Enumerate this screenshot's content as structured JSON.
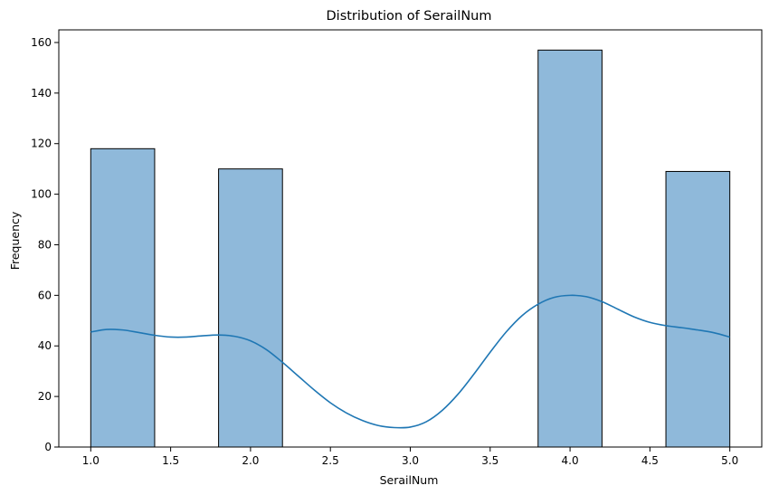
{
  "chart_data": {
    "type": "bar",
    "title": "Distribution of SerailNum",
    "xlabel": "SerailNum",
    "ylabel": "Frequency",
    "xlim": [
      0.8,
      5.2
    ],
    "ylim": [
      0,
      165
    ],
    "x_ticks": [
      "1.0",
      "1.5",
      "2.0",
      "2.5",
      "3.0",
      "3.5",
      "4.0",
      "4.5",
      "5.0"
    ],
    "y_ticks": [
      "0",
      "20",
      "40",
      "60",
      "80",
      "100",
      "120",
      "140",
      "160"
    ],
    "bins": [
      {
        "start": 1.0,
        "end": 1.4,
        "count": 118
      },
      {
        "start": 1.4,
        "end": 1.8,
        "count": 0
      },
      {
        "start": 1.8,
        "end": 2.2,
        "count": 110
      },
      {
        "start": 2.2,
        "end": 2.6,
        "count": 0
      },
      {
        "start": 2.6,
        "end": 3.0,
        "count": 0
      },
      {
        "start": 3.0,
        "end": 3.4,
        "count": 0
      },
      {
        "start": 3.4,
        "end": 3.8,
        "count": 0
      },
      {
        "start": 3.8,
        "end": 4.2,
        "count": 157
      },
      {
        "start": 4.2,
        "end": 4.6,
        "count": 0
      },
      {
        "start": 4.6,
        "end": 5.0,
        "count": 109
      }
    ],
    "kde": {
      "x": [
        1.0,
        1.1,
        1.2,
        1.3,
        1.4,
        1.5,
        1.6,
        1.7,
        1.8,
        1.9,
        2.0,
        2.1,
        2.2,
        2.3,
        2.4,
        2.5,
        2.6,
        2.7,
        2.8,
        2.9,
        3.0,
        3.1,
        3.2,
        3.3,
        3.4,
        3.5,
        3.6,
        3.7,
        3.8,
        3.9,
        4.0,
        4.1,
        4.2,
        4.3,
        4.4,
        4.5,
        4.6,
        4.7,
        4.8,
        4.9,
        5.0
      ],
      "y": [
        45.5,
        46.5,
        46.3,
        45.3,
        44.2,
        43.5,
        43.5,
        44.0,
        44.3,
        43.8,
        42.0,
        38.5,
        33.5,
        28.0,
        22.5,
        17.5,
        13.5,
        10.5,
        8.5,
        7.7,
        7.9,
        10.0,
        14.5,
        21.0,
        29.0,
        37.5,
        45.5,
        52.0,
        56.5,
        59.2,
        60.0,
        59.5,
        57.5,
        54.5,
        51.5,
        49.3,
        48.0,
        47.2,
        46.3,
        45.2,
        43.5
      ]
    },
    "colors": {
      "bar_fill": "#8fb9da",
      "bar_edge": "#000000",
      "kde_line": "#1f77b4"
    },
    "grid": false,
    "legend": "none"
  }
}
